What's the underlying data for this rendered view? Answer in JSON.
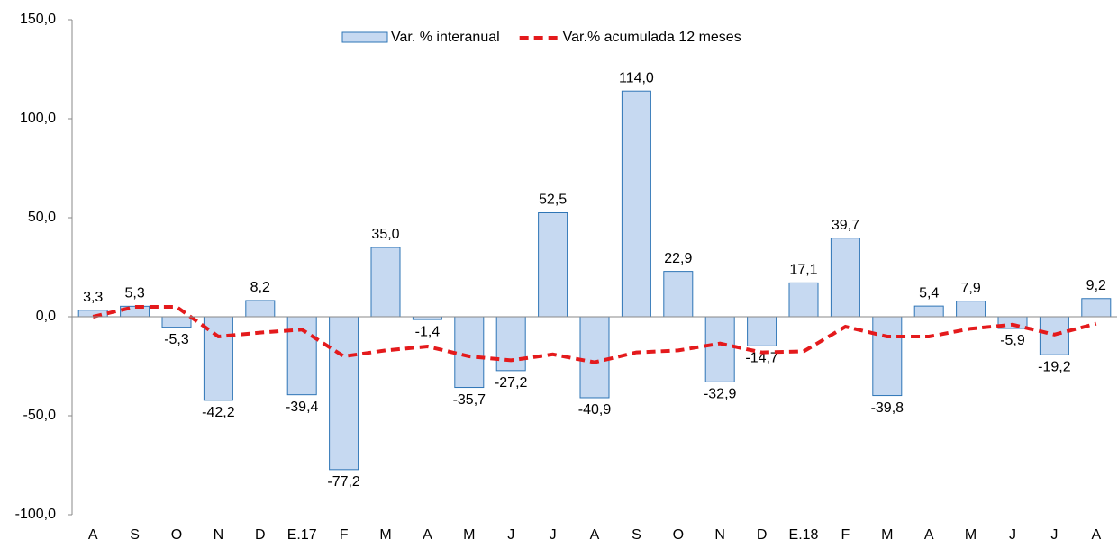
{
  "chart_data": {
    "type": "bar",
    "categories": [
      "A",
      "S",
      "O",
      "N",
      "D",
      "E.17",
      "F",
      "M",
      "A",
      "M",
      "J",
      "J",
      "A",
      "S",
      "O",
      "N",
      "D",
      "E.18",
      "F",
      "M",
      "A",
      "M",
      "J",
      "J",
      "A"
    ],
    "series": [
      {
        "name": "Var. % interanual",
        "type": "bar",
        "color": "#c6d9f1",
        "edge": "#2e75b6",
        "values": [
          3.3,
          5.3,
          -5.3,
          -42.2,
          8.2,
          -39.4,
          -77.2,
          35.0,
          -1.4,
          -35.7,
          -27.2,
          52.5,
          -40.9,
          114.0,
          22.9,
          -32.9,
          -14.7,
          17.1,
          39.7,
          -39.8,
          5.4,
          7.9,
          -5.9,
          -19.2,
          9.2
        ],
        "value_labels": [
          "3,3",
          "5,3",
          "-5,3",
          "-42,2",
          "8,2",
          "-39,4",
          "-77,2",
          "35,0",
          "-1,4",
          "-35,7",
          "-27,2",
          "52,5",
          "-40,9",
          "114,0",
          "22,9",
          "-32,9",
          "-14,7",
          "17,1",
          "39,7",
          "-39,8",
          "5,4",
          "7,9",
          "-5,9",
          "-19,2",
          "9,2"
        ]
      },
      {
        "name": "Var.% acumulada 12 meses",
        "type": "line",
        "color": "#e41a1c",
        "values": [
          0,
          5,
          5,
          -10,
          -8,
          -6.5,
          -20,
          -17,
          -15,
          -20,
          -22,
          -19,
          -23,
          -18,
          -17,
          -13.5,
          -18,
          -17.5,
          -5,
          -10,
          -10,
          -6,
          -4,
          -9,
          -3.5
        ]
      }
    ],
    "ylim": [
      -100,
      150
    ],
    "yticks": [
      {
        "value": -100,
        "label": "-100,0"
      },
      {
        "value": -50,
        "label": "-50,0"
      },
      {
        "value": 0,
        "label": "0,0"
      },
      {
        "value": 50,
        "label": "50,0"
      },
      {
        "value": 100,
        "label": "100,0"
      },
      {
        "value": 150,
        "label": "150,0"
      }
    ],
    "legend": "top"
  }
}
